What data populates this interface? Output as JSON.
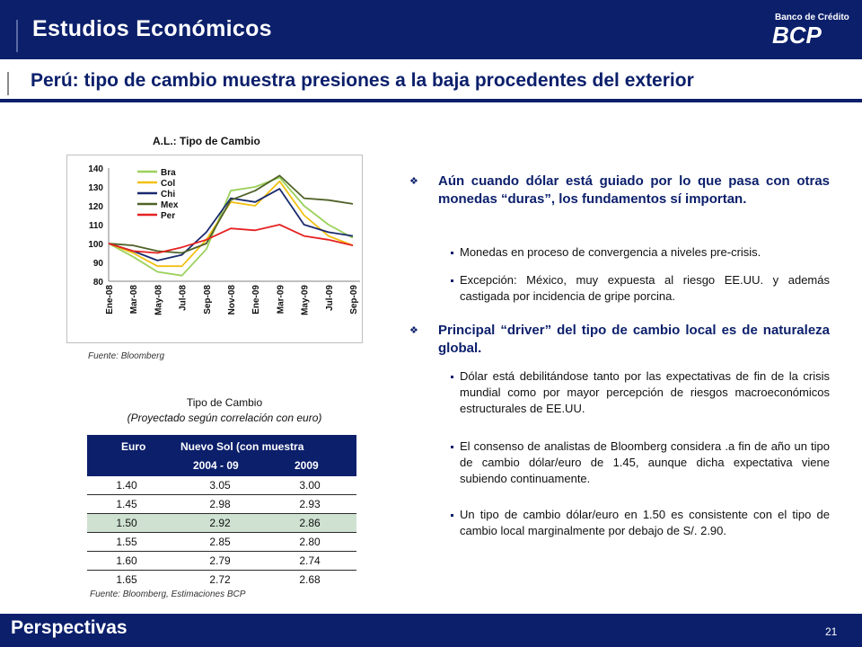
{
  "header": {
    "title": "Estudios Económicos",
    "subtitle": "Perú: tipo de cambio muestra presiones a la baja procedentes del exterior",
    "logo_small": "Banco de Crédito",
    "logo_big": "BCP",
    "logo_chevron": "›"
  },
  "chart": {
    "title": "A.L.: Tipo de Cambio",
    "source": "Fuente: Bloomberg"
  },
  "chart_data": {
    "type": "line",
    "title": "A.L.: Tipo de Cambio",
    "ylim": [
      80,
      140
    ],
    "yticks": [
      "140",
      "130",
      "120",
      "110",
      "100",
      "90",
      "80"
    ],
    "xticks": [
      "Ene-08",
      "Mar-08",
      "May-08",
      "Jul-08",
      "Sep-08",
      "Nov-08",
      "Ene-09",
      "Mar-09",
      "May-09",
      "Jul-09",
      "Sep-09"
    ],
    "legend_position": "top-left",
    "grid": false,
    "series": [
      {
        "name": "Bra",
        "color": "#9bd15b",
        "values": [
          100,
          93,
          85,
          83,
          97,
          128,
          130,
          135,
          120,
          110,
          103
        ]
      },
      {
        "name": "Col",
        "color": "#f2c012",
        "values": [
          100,
          95,
          88,
          88,
          102,
          122,
          120,
          133,
          115,
          104,
          99
        ]
      },
      {
        "name": "Chi",
        "color": "#1a2a6e",
        "values": [
          100,
          96,
          91,
          94,
          106,
          124,
          122,
          129,
          110,
          106,
          104
        ]
      },
      {
        "name": "Mex",
        "color": "#4f6228",
        "values": [
          100,
          99,
          96,
          95,
          100,
          123,
          128,
          136,
          124,
          123,
          121
        ]
      },
      {
        "name": "Per",
        "color": "#e52222",
        "values": [
          100,
          96,
          95,
          98,
          102,
          108,
          107,
          110,
          104,
          102,
          99
        ]
      }
    ]
  },
  "table": {
    "title": "Tipo de Cambio",
    "subtitle": "(Proyectado según correlación con euro)",
    "header_euro": "Euro",
    "header_sol": "Nuevo  Sol  (con muestra",
    "header_col2": "2004 - 09",
    "header_col3": "2009",
    "rows": [
      {
        "euro": "1.40",
        "a": "3.05",
        "b": "3.00"
      },
      {
        "euro": "1.45",
        "a": "2.98",
        "b": "2.93"
      },
      {
        "euro": "1.50",
        "a": "2.92",
        "b": "2.86"
      },
      {
        "euro": "1.55",
        "a": "2.85",
        "b": "2.80"
      },
      {
        "euro": "1.60",
        "a": "2.79",
        "b": "2.74"
      },
      {
        "euro": "1.65",
        "a": "2.72",
        "b": "2.68"
      }
    ],
    "source": "Fuente: Bloomberg,  Estimaciones BCP"
  },
  "bullets": {
    "p1": "Aún cuando dólar está guiado por lo que pasa con otras monedas “duras”, los fundamentos sí importan.",
    "p1a": "Monedas en proceso de convergencia a niveles pre-crisis.",
    "p1b": "Excepción: México, muy expuesta al riesgo EE.UU. y además castigada por incidencia de gripe porcina.",
    "p2": "Principal “driver” del tipo de cambio local es de naturaleza global.",
    "p2a": "Dólar está debilitándose tanto por las expectativas de fin de la crisis mundial como por mayor percepción de riesgos macroeconómicos estructurales de EE.UU.",
    "p2b": "El consenso de analistas de Bloomberg considera .a fin de año un tipo de cambio dólar/euro de 1.45, aunque dicha expectativa viene subiendo continuamente.",
    "p2c": "Un tipo de cambio dólar/euro en 1.50 es consistente con el tipo de cambio local marginalmente por debajo de S/. 2.90."
  },
  "footer": {
    "label": "Perspectivas",
    "page": "21"
  }
}
